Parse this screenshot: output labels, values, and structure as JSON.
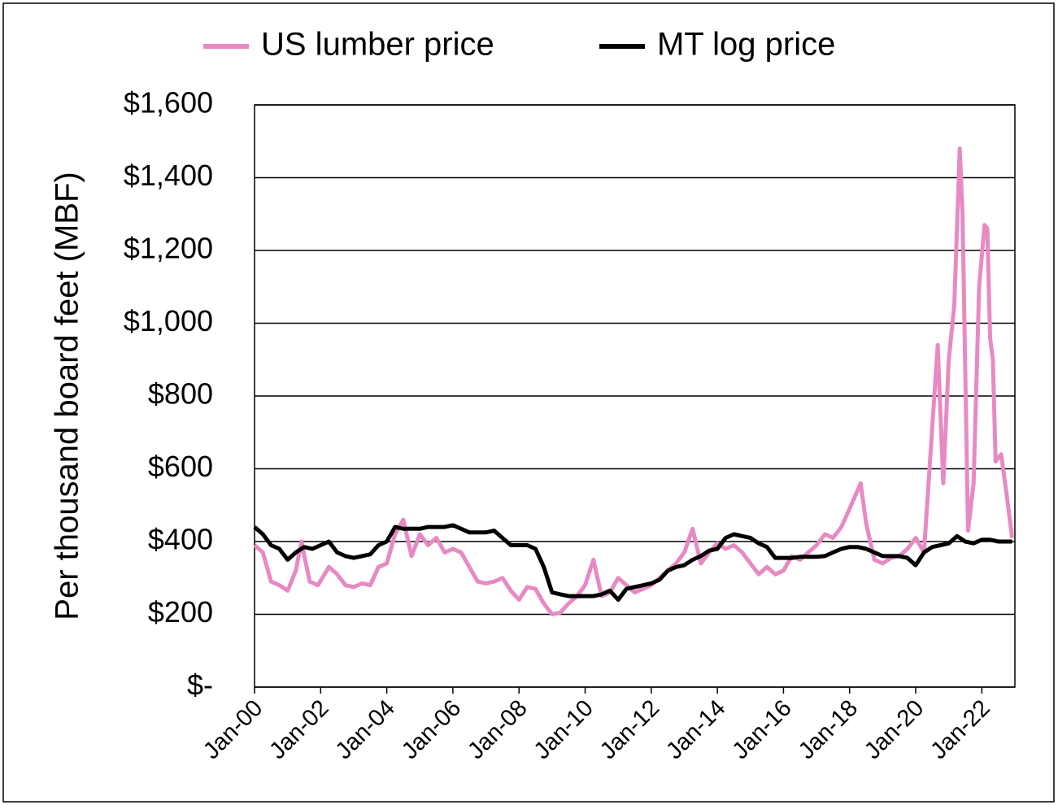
{
  "chart_data": {
    "type": "line",
    "ylabel": "Per thousand board feet (MBF)",
    "xlim": [
      "2000-01",
      "2023-01"
    ],
    "xticks": [
      {
        "value": "2000-01",
        "label": "Jan-00"
      },
      {
        "value": "2002-01",
        "label": "Jan-02"
      },
      {
        "value": "2004-01",
        "label": "Jan-04"
      },
      {
        "value": "2006-01",
        "label": "Jan-06"
      },
      {
        "value": "2008-01",
        "label": "Jan-08"
      },
      {
        "value": "2010-01",
        "label": "Jan-10"
      },
      {
        "value": "2012-01",
        "label": "Jan-12"
      },
      {
        "value": "2014-01",
        "label": "Jan-14"
      },
      {
        "value": "2016-01",
        "label": "Jan-16"
      },
      {
        "value": "2018-01",
        "label": "Jan-18"
      },
      {
        "value": "2020-01",
        "label": "Jan-20"
      },
      {
        "value": "2022-01",
        "label": "Jan-22"
      }
    ],
    "ylim": [
      0,
      1600
    ],
    "yticks": [
      {
        "value": 0,
        "label": "$-"
      },
      {
        "value": 200,
        "label": "$200"
      },
      {
        "value": 400,
        "label": "$400"
      },
      {
        "value": 600,
        "label": "$600"
      },
      {
        "value": 800,
        "label": "$800"
      },
      {
        "value": 1000,
        "label": "$1,000"
      },
      {
        "value": 1200,
        "label": "$1,200"
      },
      {
        "value": 1400,
        "label": "$1,400"
      },
      {
        "value": 1600,
        "label": "$1,600"
      }
    ],
    "grid": true,
    "legend": "top",
    "series": [
      {
        "name": "US lumber price",
        "color": "#e78ac3",
        "x": [
          "2000-01",
          "2000-04",
          "2000-07",
          "2000-10",
          "2001-01",
          "2001-04",
          "2001-06",
          "2001-09",
          "2001-12",
          "2002-04",
          "2002-07",
          "2002-10",
          "2003-01",
          "2003-04",
          "2003-07",
          "2003-10",
          "2004-01",
          "2004-04",
          "2004-07",
          "2004-10",
          "2005-01",
          "2005-04",
          "2005-07",
          "2005-10",
          "2006-01",
          "2006-04",
          "2006-07",
          "2006-10",
          "2007-01",
          "2007-04",
          "2007-07",
          "2007-10",
          "2008-01",
          "2008-04",
          "2008-07",
          "2008-10",
          "2009-01",
          "2009-04",
          "2009-07",
          "2009-10",
          "2010-01",
          "2010-04",
          "2010-07",
          "2010-10",
          "2011-01",
          "2011-04",
          "2011-07",
          "2011-10",
          "2012-01",
          "2012-04",
          "2012-07",
          "2012-10",
          "2013-01",
          "2013-04",
          "2013-07",
          "2013-10",
          "2014-01",
          "2014-04",
          "2014-07",
          "2014-10",
          "2015-01",
          "2015-04",
          "2015-07",
          "2015-10",
          "2016-01",
          "2016-04",
          "2016-07",
          "2016-10",
          "2017-01",
          "2017-04",
          "2017-07",
          "2017-10",
          "2018-01",
          "2018-05",
          "2018-07",
          "2018-10",
          "2019-01",
          "2019-04",
          "2019-07",
          "2019-10",
          "2020-01",
          "2020-04",
          "2020-06",
          "2020-09",
          "2020-11",
          "2021-01",
          "2021-03",
          "2021-05",
          "2021-06",
          "2021-08",
          "2021-10",
          "2021-12",
          "2022-02",
          "2022-03",
          "2022-04",
          "2022-05",
          "2022-06",
          "2022-08",
          "2022-10",
          "2022-12"
        ],
        "values": [
          390,
          370,
          290,
          280,
          265,
          320,
          400,
          290,
          280,
          330,
          310,
          280,
          275,
          285,
          280,
          330,
          340,
          420,
          460,
          360,
          420,
          390,
          410,
          370,
          380,
          370,
          330,
          290,
          285,
          290,
          300,
          265,
          240,
          275,
          270,
          230,
          200,
          205,
          230,
          250,
          280,
          350,
          250,
          260,
          300,
          280,
          260,
          270,
          280,
          300,
          320,
          340,
          370,
          435,
          340,
          370,
          395,
          380,
          390,
          370,
          340,
          310,
          330,
          310,
          320,
          360,
          350,
          370,
          390,
          420,
          410,
          440,
          490,
          560,
          450,
          350,
          340,
          355,
          360,
          380,
          410,
          370,
          600,
          940,
          560,
          900,
          1050,
          1480,
          1300,
          430,
          560,
          1100,
          1270,
          1260,
          960,
          900,
          620,
          640,
          530,
          410
        ]
      },
      {
        "name": "MT log price",
        "color": "#000000",
        "x": [
          "2000-01",
          "2000-04",
          "2000-07",
          "2000-10",
          "2001-01",
          "2001-04",
          "2001-07",
          "2001-10",
          "2002-01",
          "2002-04",
          "2002-07",
          "2002-10",
          "2003-01",
          "2003-04",
          "2003-07",
          "2003-10",
          "2004-01",
          "2004-04",
          "2004-07",
          "2004-10",
          "2005-01",
          "2005-04",
          "2005-07",
          "2005-10",
          "2006-01",
          "2006-04",
          "2006-07",
          "2006-10",
          "2007-01",
          "2007-04",
          "2007-07",
          "2007-10",
          "2008-01",
          "2008-04",
          "2008-07",
          "2008-10",
          "2009-01",
          "2009-04",
          "2009-07",
          "2009-10",
          "2010-01",
          "2010-04",
          "2010-07",
          "2010-10",
          "2011-01",
          "2011-04",
          "2011-07",
          "2011-10",
          "2012-01",
          "2012-04",
          "2012-07",
          "2012-10",
          "2013-01",
          "2013-04",
          "2013-07",
          "2013-10",
          "2014-01",
          "2014-04",
          "2014-07",
          "2014-10",
          "2015-01",
          "2015-04",
          "2015-07",
          "2015-10",
          "2016-01",
          "2016-04",
          "2016-07",
          "2016-10",
          "2017-01",
          "2017-04",
          "2017-07",
          "2017-10",
          "2018-01",
          "2018-04",
          "2018-07",
          "2018-10",
          "2019-01",
          "2019-04",
          "2019-07",
          "2019-10",
          "2020-01",
          "2020-04",
          "2020-07",
          "2020-10",
          "2021-01",
          "2021-04",
          "2021-07",
          "2021-10",
          "2022-01",
          "2022-04",
          "2022-07",
          "2022-10",
          "2022-12"
        ],
        "values": [
          440,
          420,
          390,
          380,
          350,
          370,
          385,
          380,
          390,
          400,
          370,
          360,
          355,
          360,
          365,
          390,
          400,
          440,
          435,
          435,
          435,
          440,
          440,
          440,
          445,
          435,
          425,
          425,
          425,
          430,
          410,
          390,
          390,
          390,
          380,
          330,
          260,
          255,
          250,
          250,
          250,
          250,
          255,
          265,
          240,
          270,
          275,
          280,
          285,
          295,
          320,
          330,
          335,
          350,
          360,
          375,
          380,
          410,
          420,
          415,
          410,
          395,
          385,
          355,
          355,
          355,
          358,
          358,
          358,
          360,
          370,
          380,
          385,
          385,
          380,
          370,
          360,
          360,
          360,
          355,
          335,
          370,
          385,
          390,
          395,
          415,
          400,
          395,
          405,
          405,
          400,
          400,
          400
        ]
      }
    ]
  }
}
